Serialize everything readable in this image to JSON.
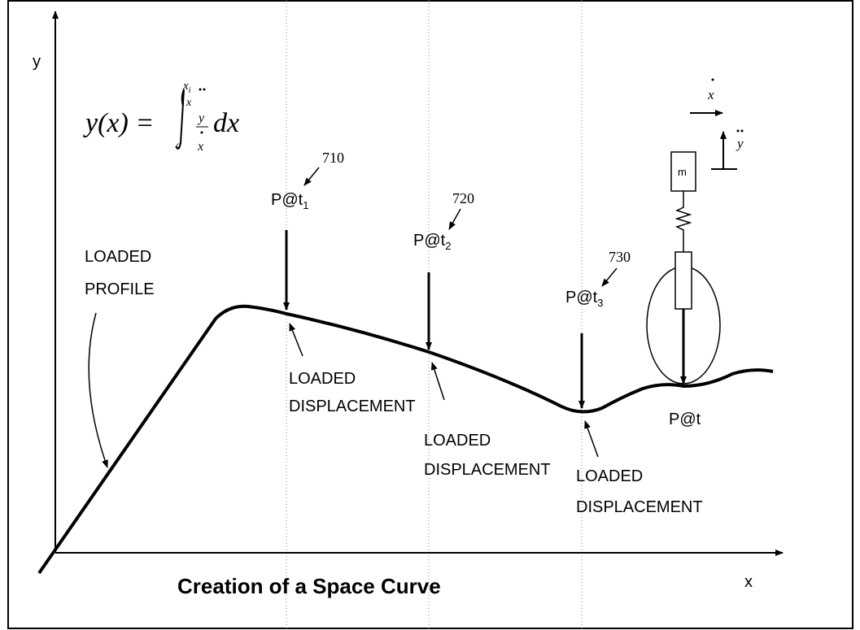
{
  "axes": {
    "y_label": "y",
    "x_label": "x"
  },
  "title": "Creation of a Space Curve",
  "formula": {
    "lhs": "y(x) =",
    "upper": "x",
    "upper_sub": "i",
    "lower": "0",
    "inner_var": "x",
    "numerator": "y",
    "denominator": "x",
    "differential": "dx"
  },
  "profile_label": [
    "LOADED",
    "PROFILE"
  ],
  "loads": [
    {
      "label": "P@t",
      "subscript": "1",
      "ref": "710",
      "displacement": [
        "LOADED",
        "DISPLACEMENT"
      ]
    },
    {
      "label": "P@t",
      "subscript": "2",
      "ref": "720",
      "displacement": [
        "LOADED",
        "DISPLACEMENT"
      ]
    },
    {
      "label": "P@t",
      "subscript": "3",
      "ref": "730",
      "displacement": [
        "LOADED",
        "DISPLACEMENT"
      ]
    }
  ],
  "wheel": {
    "mass": "m",
    "load_label": "P@t"
  },
  "legend": {
    "x_rate": "x",
    "y_accel": "y"
  }
}
